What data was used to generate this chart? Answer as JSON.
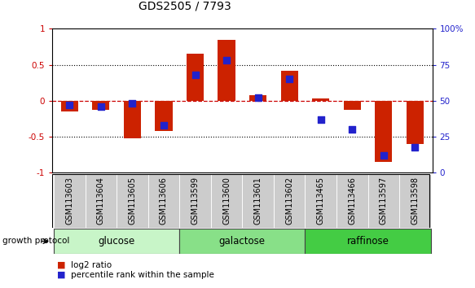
{
  "title": "GDS2505 / 7793",
  "samples": [
    "GSM113603",
    "GSM113604",
    "GSM113605",
    "GSM113606",
    "GSM113599",
    "GSM113600",
    "GSM113601",
    "GSM113602",
    "GSM113465",
    "GSM113466",
    "GSM113597",
    "GSM113598"
  ],
  "log2_ratio": [
    -0.15,
    -0.12,
    -0.52,
    -0.42,
    0.65,
    0.85,
    0.08,
    0.42,
    0.03,
    -0.12,
    -0.85,
    -0.6
  ],
  "percentile": [
    47,
    46,
    48,
    33,
    68,
    78,
    52,
    65,
    37,
    30,
    12,
    18
  ],
  "groups": [
    {
      "label": "glucose",
      "start": 0,
      "end": 4,
      "color": "#c8f5c8"
    },
    {
      "label": "galactose",
      "start": 4,
      "end": 8,
      "color": "#88e088"
    },
    {
      "label": "raffinose",
      "start": 8,
      "end": 12,
      "color": "#44cc44"
    }
  ],
  "bar_color": "#cc2200",
  "dot_color": "#2222cc",
  "ylim": [
    -1,
    1
  ],
  "y2lim": [
    0,
    100
  ],
  "yticks": [
    -1,
    -0.5,
    0,
    0.5,
    1
  ],
  "y2ticks": [
    0,
    25,
    50,
    75,
    100
  ],
  "hline_color": "#cc0000",
  "grid_color": "#000000",
  "bg_color": "#ffffff",
  "bar_width": 0.55,
  "dot_size": 28,
  "growth_protocol_label": "growth protocol",
  "legend_log2": "log2 ratio",
  "legend_pct": "percentile rank within the sample",
  "title_fontsize": 10,
  "label_fontsize": 7,
  "tick_fontsize": 7.5,
  "group_fontsize": 8.5
}
